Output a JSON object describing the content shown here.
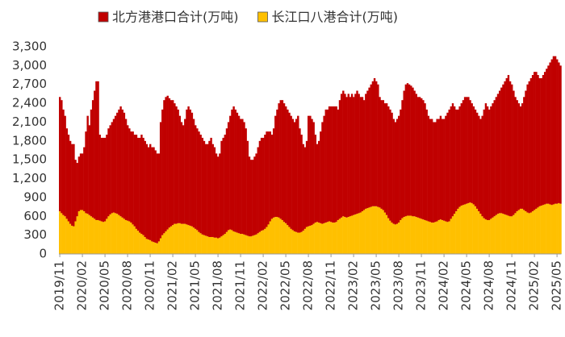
{
  "chart_data": {
    "type": "bar",
    "stacked": true,
    "categories": [
      "2019/11",
      null,
      null,
      null,
      null,
      null,
      null,
      null,
      null,
      null,
      null,
      null,
      null,
      "2020/02",
      null,
      null,
      null,
      null,
      null,
      null,
      null,
      null,
      null,
      null,
      null,
      null,
      "2020/05",
      null,
      null,
      null,
      null,
      null,
      null,
      null,
      null,
      null,
      null,
      null,
      null,
      "2020/08",
      null,
      null,
      null,
      null,
      null,
      null,
      null,
      null,
      null,
      null,
      null,
      null,
      "2020/11",
      null,
      null,
      null,
      null,
      null,
      null,
      null,
      null,
      null,
      null,
      null,
      null,
      "2021/02",
      null,
      null,
      null,
      null,
      null,
      null,
      null,
      null,
      null,
      null,
      null,
      null,
      "2021/05",
      null,
      null,
      null,
      null,
      null,
      null,
      null,
      null,
      null,
      null,
      null,
      null,
      "2021/08",
      null,
      null,
      null,
      null,
      null,
      null,
      null,
      null,
      null,
      null,
      null,
      null,
      "2021/11",
      null,
      null,
      null,
      null,
      null,
      null,
      null,
      null,
      null,
      null,
      null,
      null,
      "2022/02",
      null,
      null,
      null,
      null,
      null,
      null,
      null,
      null,
      null,
      null,
      null,
      null,
      "2022/05",
      null,
      null,
      null,
      null,
      null,
      null,
      null,
      null,
      null,
      null,
      null,
      null,
      "2022/08",
      null,
      null,
      null,
      null,
      null,
      null,
      null,
      null,
      null,
      null,
      null,
      null,
      "2022/11",
      null,
      null,
      null,
      null,
      null,
      null,
      null,
      null,
      null,
      null,
      null,
      null,
      "2023/02",
      null,
      null,
      null,
      null,
      null,
      null,
      null,
      null,
      null,
      null,
      null,
      null,
      "2023/05",
      null,
      null,
      null,
      null,
      null,
      null,
      null,
      null,
      null,
      null,
      null,
      null,
      "2023/08",
      null,
      null,
      null,
      null,
      null,
      null,
      null,
      null,
      null,
      null,
      null,
      null,
      "2023/11",
      null,
      null,
      null,
      null,
      null,
      null,
      null,
      null,
      null,
      null,
      null,
      null,
      "2024/02",
      null,
      null,
      null,
      null,
      null,
      null,
      null,
      null,
      null,
      null,
      null,
      null,
      "2024/05",
      null,
      null,
      null,
      null,
      null,
      null,
      null,
      null,
      null,
      null,
      null,
      null,
      "2024/08",
      null,
      null,
      null,
      null,
      null,
      null,
      null,
      null,
      null,
      null,
      null,
      null,
      "2024/11",
      null,
      null,
      null,
      null,
      null,
      null,
      null,
      null,
      null,
      null,
      null,
      null,
      "2025/02",
      null,
      null,
      null,
      null,
      null,
      null,
      null,
      null,
      null,
      null,
      null,
      null,
      "2025/05",
      null,
      null
    ],
    "series": [
      {
        "name": "北方港港口合计(万吨)",
        "color": "#c00000",
        "values": [
          1820,
          1800,
          1680,
          1600,
          1440,
          1380,
          1320,
          1300,
          1310,
          980,
          850,
          870,
          900,
          900,
          1020,
          1300,
          1560,
          1430,
          1700,
          1870,
          2040,
          2210,
          2210,
          1370,
          1330,
          1340,
          1330,
          1340,
          1400,
          1420,
          1450,
          1490,
          1550,
          1610,
          1680,
          1750,
          1720,
          1690,
          1610,
          1520,
          1480,
          1450,
          1480,
          1460,
          1500,
          1480,
          1510,
          1580,
          1550,
          1530,
          1510,
          1470,
          1530,
          1500,
          1510,
          1470,
          1430,
          1400,
          1850,
          2000,
          2120,
          2140,
          2130,
          2060,
          2010,
          1990,
          1920,
          1870,
          1810,
          1710,
          1620,
          1570,
          1670,
          1830,
          1890,
          1850,
          1810,
          1730,
          1650,
          1620,
          1600,
          1570,
          1540,
          1500,
          1460,
          1470,
          1530,
          1580,
          1480,
          1440,
          1340,
          1300,
          1340,
          1520,
          1550,
          1580,
          1650,
          1720,
          1810,
          1920,
          1990,
          1950,
          1910,
          1870,
          1830,
          1830,
          1790,
          1700,
          1510,
          1270,
          1220,
          1210,
          1250,
          1290,
          1370,
          1450,
          1480,
          1470,
          1500,
          1520,
          1480,
          1430,
          1340,
          1420,
          1610,
          1710,
          1820,
          1890,
          1910,
          1890,
          1860,
          1840,
          1820,
          1800,
          1770,
          1740,
          1800,
          1860,
          1660,
          1550,
          1380,
          1300,
          1370,
          1760,
          1750,
          1690,
          1620,
          1400,
          1240,
          1300,
          1460,
          1620,
          1710,
          1800,
          1790,
          1830,
          1840,
          1850,
          1850,
          1840,
          1760,
          1890,
          1970,
          2000,
          1960,
          1920,
          1960,
          1900,
          1940,
          1880,
          1920,
          1960,
          1900,
          1840,
          1820,
          1750,
          1830,
          1870,
          1910,
          1950,
          1990,
          2040,
          1990,
          1950,
          1760,
          1730,
          1750,
          1740,
          1780,
          1780,
          1770,
          1750,
          1670,
          1630,
          1670,
          1700,
          1760,
          1880,
          2010,
          2100,
          2110,
          2090,
          2070,
          2050,
          2000,
          1960,
          1920,
          1930,
          1920,
          1900,
          1860,
          1770,
          1680,
          1640,
          1650,
          1600,
          1590,
          1630,
          1610,
          1650,
          1610,
          1620,
          1680,
          1740,
          1780,
          1790,
          1800,
          1710,
          1620,
          1580,
          1600,
          1630,
          1670,
          1710,
          1700,
          1690,
          1630,
          1590,
          1560,
          1540,
          1530,
          1520,
          1510,
          1600,
          1730,
          1850,
          1810,
          1760,
          1790,
          1820,
          1850,
          1880,
          1910,
          1950,
          2000,
          2060,
          2120,
          2180,
          2240,
          2150,
          2100,
          1980,
          1850,
          1770,
          1700,
          1630,
          1680,
          1800,
          1920,
          2040,
          2100,
          2140,
          2170,
          2200,
          2180,
          2110,
          2040,
          2030,
          2070,
          2110,
          2150,
          2200,
          2260,
          2320,
          2360,
          2350,
          2300,
          2240,
          2200
        ]
      },
      {
        "name": "长江口八港合计(万吨)",
        "color": "#ffc000",
        "values": [
          680,
          650,
          620,
          600,
          560,
          520,
          480,
          450,
          440,
          520,
          600,
          680,
          700,
          700,
          680,
          650,
          640,
          620,
          600,
          580,
          560,
          540,
          540,
          530,
          520,
          510,
          520,
          560,
          600,
          630,
          650,
          660,
          650,
          640,
          620,
          600,
          580,
          560,
          540,
          530,
          520,
          500,
          470,
          440,
          400,
          370,
          340,
          320,
          300,
          270,
          240,
          230,
          220,
          200,
          190,
          180,
          170,
          200,
          250,
          300,
          330,
          360,
          390,
          420,
          440,
          460,
          480,
          480,
          490,
          490,
          480,
          480,
          480,
          470,
          460,
          450,
          440,
          420,
          400,
          380,
          350,
          330,
          310,
          300,
          290,
          280,
          270,
          270,
          270,
          260,
          260,
          250,
          260,
          280,
          300,
          320,
          350,
          380,
          390,
          380,
          360,
          350,
          340,
          330,
          320,
          320,
          310,
          300,
          290,
          280,
          280,
          290,
          300,
          310,
          330,
          350,
          370,
          380,
          400,
          430,
          470,
          520,
          560,
          580,
          590,
          590,
          580,
          560,
          540,
          510,
          490,
          460,
          430,
          400,
          380,
          360,
          350,
          340,
          340,
          350,
          370,
          400,
          430,
          440,
          450,
          460,
          480,
          500,
          510,
          500,
          490,
          480,
          490,
          500,
          510,
          520,
          510,
          500,
          500,
          510,
          540,
          560,
          580,
          600,
          590,
          580,
          590,
          600,
          610,
          620,
          630,
          640,
          650,
          660,
          680,
          700,
          720,
          730,
          740,
          750,
          760,
          760,
          760,
          750,
          740,
          720,
          700,
          660,
          620,
          570,
          530,
          500,
          480,
          470,
          480,
          500,
          540,
          570,
          590,
          600,
          610,
          610,
          610,
          600,
          600,
          590,
          580,
          570,
          560,
          550,
          540,
          530,
          520,
          510,
          500,
          500,
          510,
          520,
          540,
          550,
          540,
          530,
          520,
          510,
          520,
          560,
          600,
          640,
          680,
          720,
          750,
          770,
          780,
          790,
          800,
          810,
          820,
          810,
          790,
          760,
          720,
          680,
          640,
          600,
          570,
          550,
          540,
          540,
          560,
          580,
          600,
          620,
          640,
          650,
          650,
          640,
          630,
          620,
          610,
          600,
          600,
          620,
          650,
          680,
          700,
          720,
          720,
          700,
          680,
          660,
          650,
          660,
          680,
          700,
          720,
          740,
          760,
          770,
          780,
          790,
          800,
          800,
          790,
          780,
          790,
          800,
          800,
          810,
          800
        ]
      }
    ],
    "ylim": [
      0,
      3300
    ],
    "yticks": [
      0,
      300,
      600,
      900,
      {
        "value": 1200,
        "label": "1,200"
      },
      {
        "value": 1500,
        "label": "1,500"
      },
      {
        "value": 1800,
        "label": "1,800"
      },
      {
        "value": 2100,
        "label": "2,100"
      },
      {
        "value": 2400,
        "label": "2,400"
      },
      {
        "value": 2700,
        "label": "2,700"
      },
      {
        "value": 3000,
        "label": "3,000"
      },
      {
        "value": 3300,
        "label": "3,300"
      }
    ],
    "legend": "top",
    "grid": false
  }
}
